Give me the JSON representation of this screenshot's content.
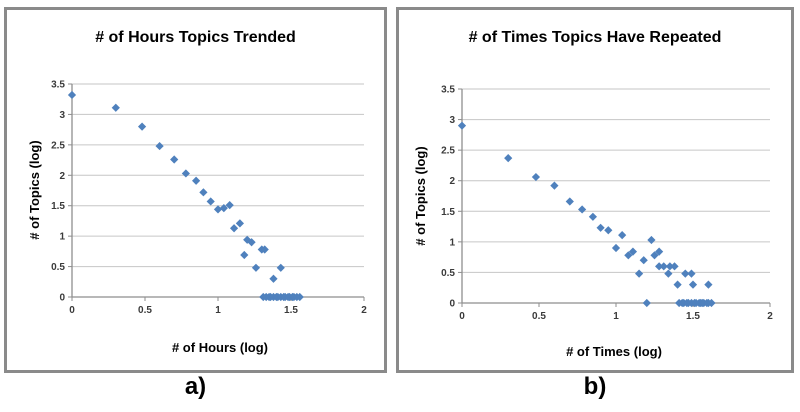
{
  "colors": {
    "marker": "#4F81BD",
    "gridline": "#C6C6C6",
    "axis": "#8E8E8E",
    "tick_text": "#3A3A3A",
    "panel_border": "#8A8A8A",
    "background": "#FFFFFF"
  },
  "chart_data": [
    {
      "type": "scatter",
      "title": "# of Hours Topics Trended",
      "xlabel": "# of Hours (log)",
      "ylabel": "# of Topics (log)",
      "caption": "a)",
      "xlim": [
        0,
        2
      ],
      "ylim": [
        0,
        3.5
      ],
      "xticks": [
        "0",
        "0.5",
        "1",
        "1.5",
        "2"
      ],
      "yticks": [
        "0",
        "0.5",
        "1",
        "1.5",
        "2",
        "2.5",
        "3",
        "3.5"
      ],
      "grid": "horizontal",
      "legend": "none",
      "marker": "diamond",
      "points": [
        [
          0.0,
          3.32
        ],
        [
          0.3,
          3.11
        ],
        [
          0.48,
          2.8
        ],
        [
          0.6,
          2.48
        ],
        [
          0.7,
          2.26
        ],
        [
          0.78,
          2.03
        ],
        [
          0.85,
          1.91
        ],
        [
          0.9,
          1.72
        ],
        [
          0.95,
          1.57
        ],
        [
          1.0,
          1.44
        ],
        [
          1.04,
          1.46
        ],
        [
          1.08,
          1.51
        ],
        [
          1.11,
          1.13
        ],
        [
          1.15,
          1.21
        ],
        [
          1.18,
          0.69
        ],
        [
          1.2,
          0.94
        ],
        [
          1.23,
          0.9
        ],
        [
          1.26,
          0.48
        ],
        [
          1.3,
          0.78
        ],
        [
          1.32,
          0.78
        ],
        [
          1.38,
          0.3
        ],
        [
          1.43,
          0.48
        ],
        [
          1.31,
          0
        ],
        [
          1.33,
          0
        ],
        [
          1.35,
          0
        ],
        [
          1.36,
          0
        ],
        [
          1.38,
          0
        ],
        [
          1.4,
          0
        ],
        [
          1.41,
          0
        ],
        [
          1.43,
          0
        ],
        [
          1.45,
          0
        ],
        [
          1.46,
          0
        ],
        [
          1.48,
          0
        ],
        [
          1.49,
          0
        ],
        [
          1.51,
          0
        ],
        [
          1.52,
          0
        ],
        [
          1.54,
          0
        ],
        [
          1.56,
          0
        ]
      ]
    },
    {
      "type": "scatter",
      "title": "# of Times Topics Have Repeated",
      "xlabel": "# of Times (log)",
      "ylabel": "# of Topics (log)",
      "caption": "b)",
      "xlim": [
        0,
        2
      ],
      "ylim": [
        0,
        3.5
      ],
      "xticks": [
        "0",
        "0.5",
        "1",
        "1.5",
        "2"
      ],
      "yticks": [
        "0",
        "0.5",
        "1",
        "1.5",
        "2",
        "2.5",
        "3",
        "3.5"
      ],
      "grid": "horizontal",
      "legend": "none",
      "marker": "diamond",
      "points": [
        [
          0.0,
          2.9
        ],
        [
          0.3,
          2.37
        ],
        [
          0.48,
          2.06
        ],
        [
          0.6,
          1.92
        ],
        [
          0.7,
          1.66
        ],
        [
          0.78,
          1.53
        ],
        [
          0.85,
          1.41
        ],
        [
          0.9,
          1.23
        ],
        [
          0.95,
          1.19
        ],
        [
          1.0,
          0.9
        ],
        [
          1.04,
          1.11
        ],
        [
          1.08,
          0.78
        ],
        [
          1.11,
          0.84
        ],
        [
          1.15,
          0.48
        ],
        [
          1.18,
          0.7
        ],
        [
          1.23,
          1.03
        ],
        [
          1.25,
          0.78
        ],
        [
          1.28,
          0.84
        ],
        [
          1.28,
          0.6
        ],
        [
          1.31,
          0.6
        ],
        [
          1.34,
          0.48
        ],
        [
          1.35,
          0.6
        ],
        [
          1.38,
          0.6
        ],
        [
          1.4,
          0.3
        ],
        [
          1.45,
          0.48
        ],
        [
          1.49,
          0.48
        ],
        [
          1.5,
          0.3
        ],
        [
          1.6,
          0.3
        ],
        [
          1.2,
          0
        ],
        [
          1.41,
          0
        ],
        [
          1.43,
          0
        ],
        [
          1.44,
          0
        ],
        [
          1.46,
          0
        ],
        [
          1.47,
          0
        ],
        [
          1.49,
          0
        ],
        [
          1.51,
          0
        ],
        [
          1.52,
          0
        ],
        [
          1.54,
          0
        ],
        [
          1.55,
          0
        ],
        [
          1.56,
          0
        ],
        [
          1.57,
          0
        ],
        [
          1.59,
          0
        ],
        [
          1.6,
          0
        ],
        [
          1.62,
          0
        ]
      ]
    }
  ]
}
